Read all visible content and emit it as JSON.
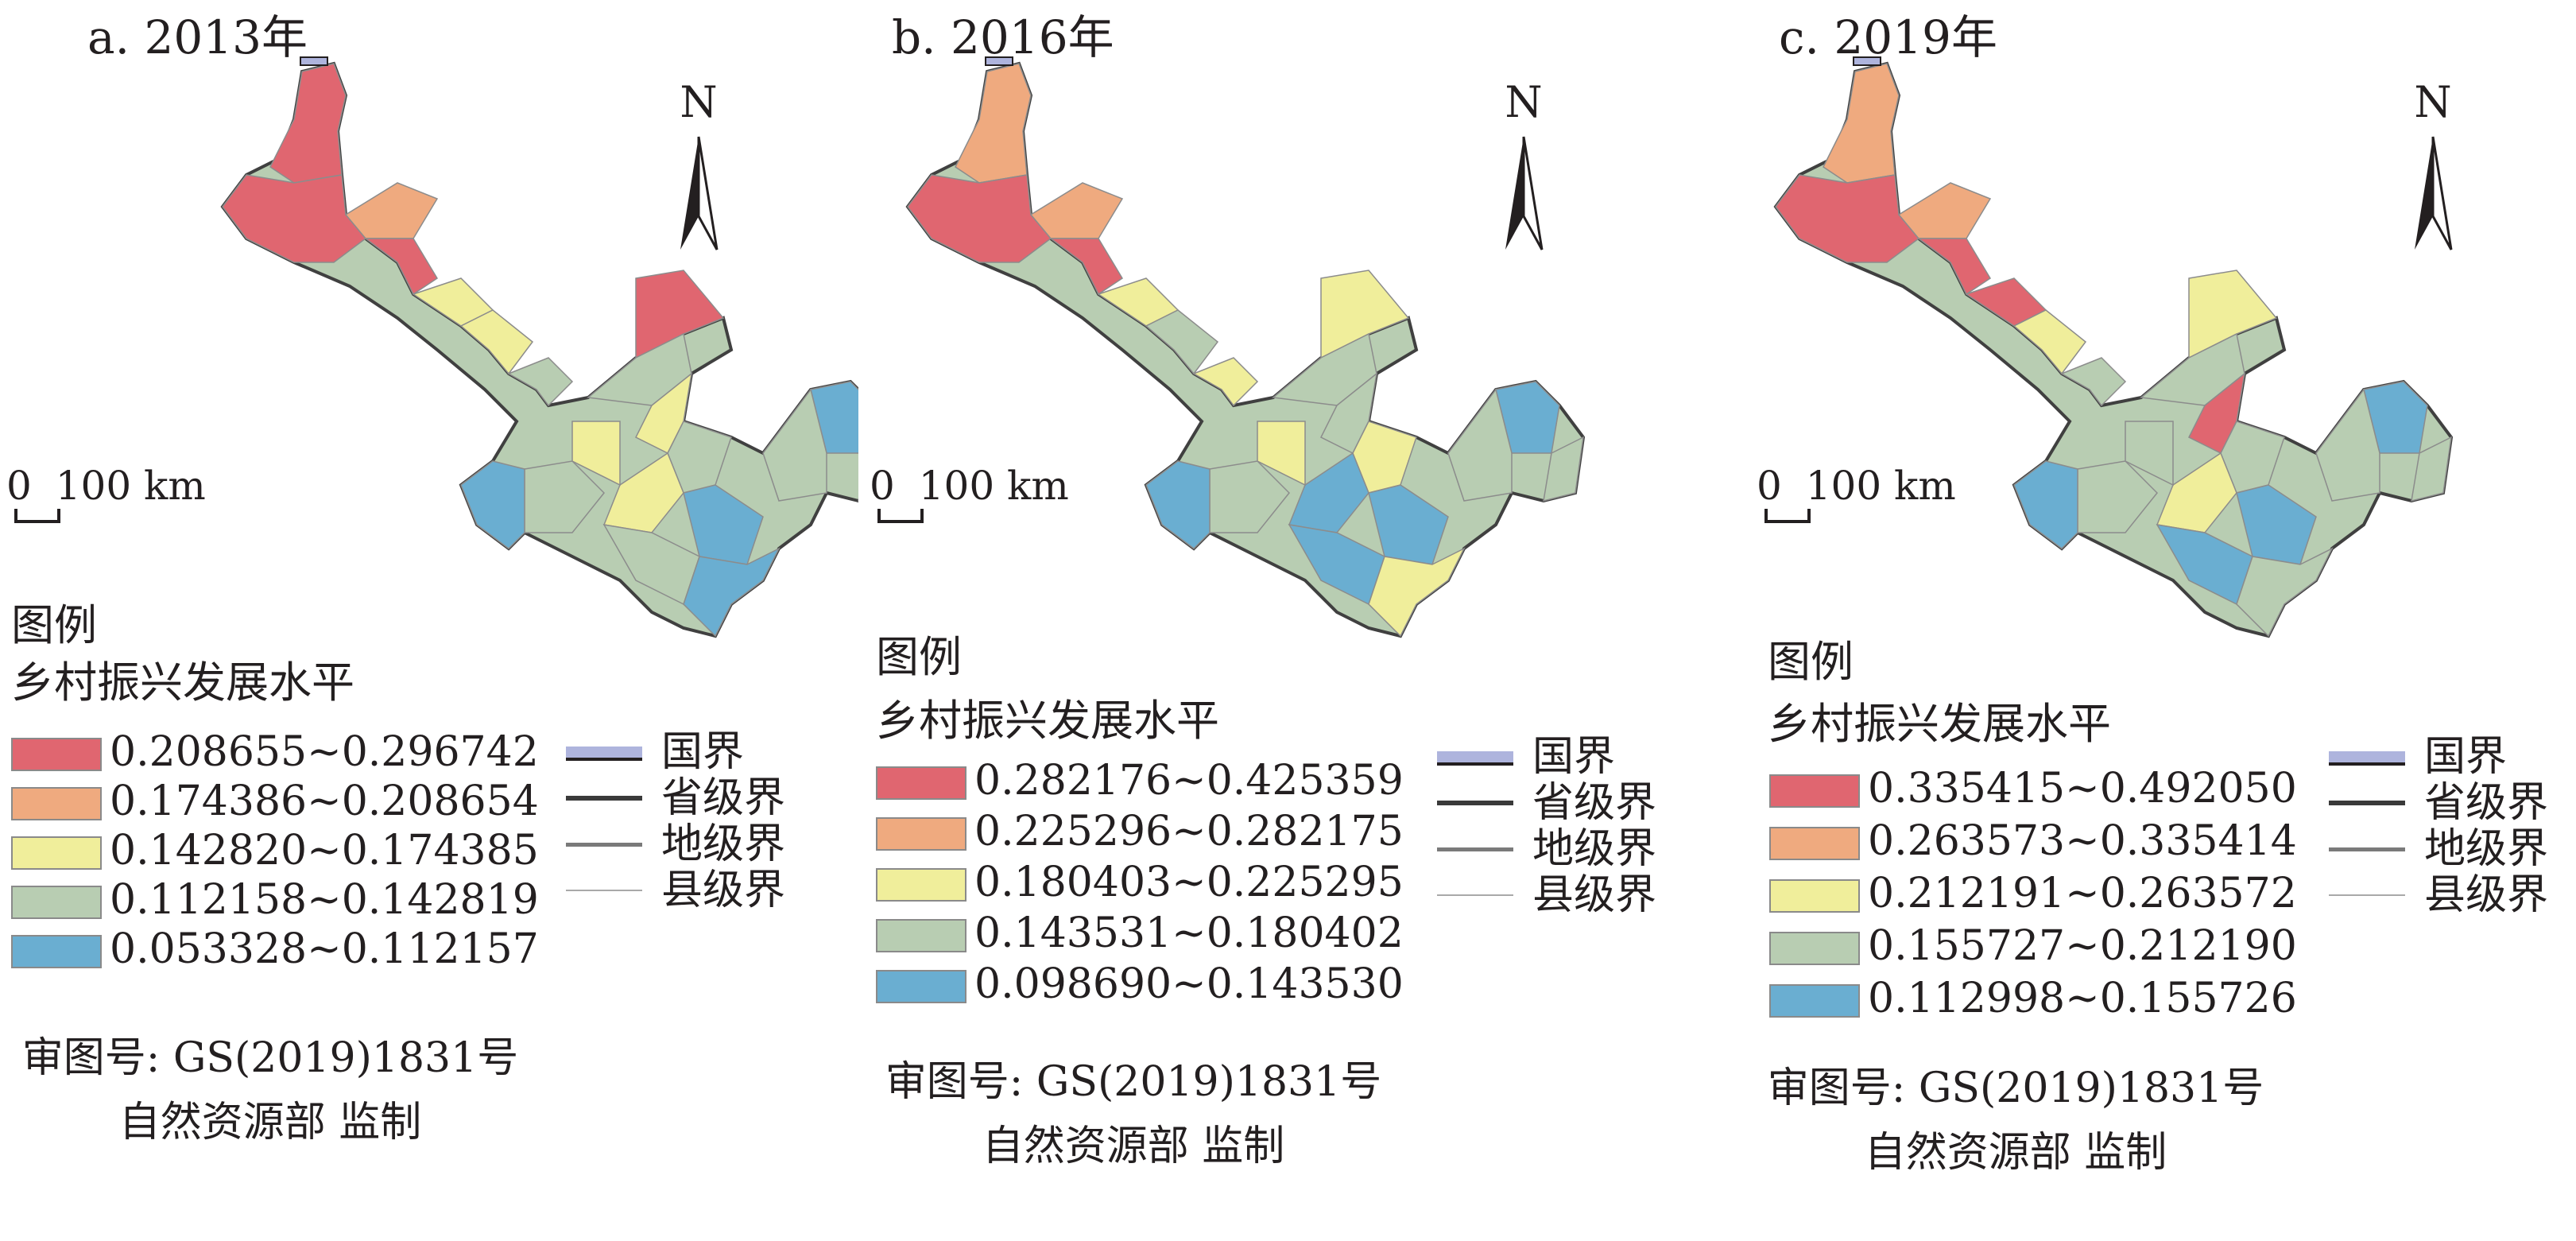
{
  "panels": [
    {
      "title": "a. 2013年",
      "classes": [
        {
          "range": "0.208655~0.296742",
          "color": "#e06670"
        },
        {
          "range": "0.174386~0.208654",
          "color": "#efaa7f"
        },
        {
          "range": "0.142820~0.174385",
          "color": "#f0ee9b"
        },
        {
          "range": "0.112158~0.142819",
          "color": "#b8cdb2"
        },
        {
          "range": "0.053328~0.112157",
          "color": "#6aaed1"
        }
      ]
    },
    {
      "title": "b. 2016年",
      "classes": [
        {
          "range": "0.282176~0.425359",
          "color": "#e06670"
        },
        {
          "range": "0.225296~0.282175",
          "color": "#efaa7f"
        },
        {
          "range": "0.180403~0.225295",
          "color": "#f0ee9b"
        },
        {
          "range": "0.143531~0.180402",
          "color": "#b8cdb2"
        },
        {
          "range": "0.098690~0.143530",
          "color": "#6aaed1"
        }
      ]
    },
    {
      "title": "c. 2019年",
      "classes": [
        {
          "range": "0.335415~0.492050",
          "color": "#e06670"
        },
        {
          "range": "0.263573~0.335414",
          "color": "#efaa7f"
        },
        {
          "range": "0.212191~0.263572",
          "color": "#f0ee9b"
        },
        {
          "range": "0.155727~0.212190",
          "color": "#b8cdb2"
        },
        {
          "range": "0.112998~0.155726",
          "color": "#6aaed1"
        }
      ]
    }
  ],
  "north_label": "N",
  "scale": {
    "zero": "0",
    "label": "100 km"
  },
  "legend": {
    "title": "图例",
    "subtitle": "乡村振兴发展水平",
    "boundaries": [
      {
        "label": "国界",
        "icon": "national-boundary"
      },
      {
        "label": "省级界",
        "icon": "provincial-boundary"
      },
      {
        "label": "地级界",
        "icon": "prefecture-boundary"
      },
      {
        "label": "县级界",
        "icon": "county-boundary"
      }
    ]
  },
  "credit": {
    "line1": "审图号: GS(2019)1831号",
    "line2": "自然资源部 监制"
  }
}
